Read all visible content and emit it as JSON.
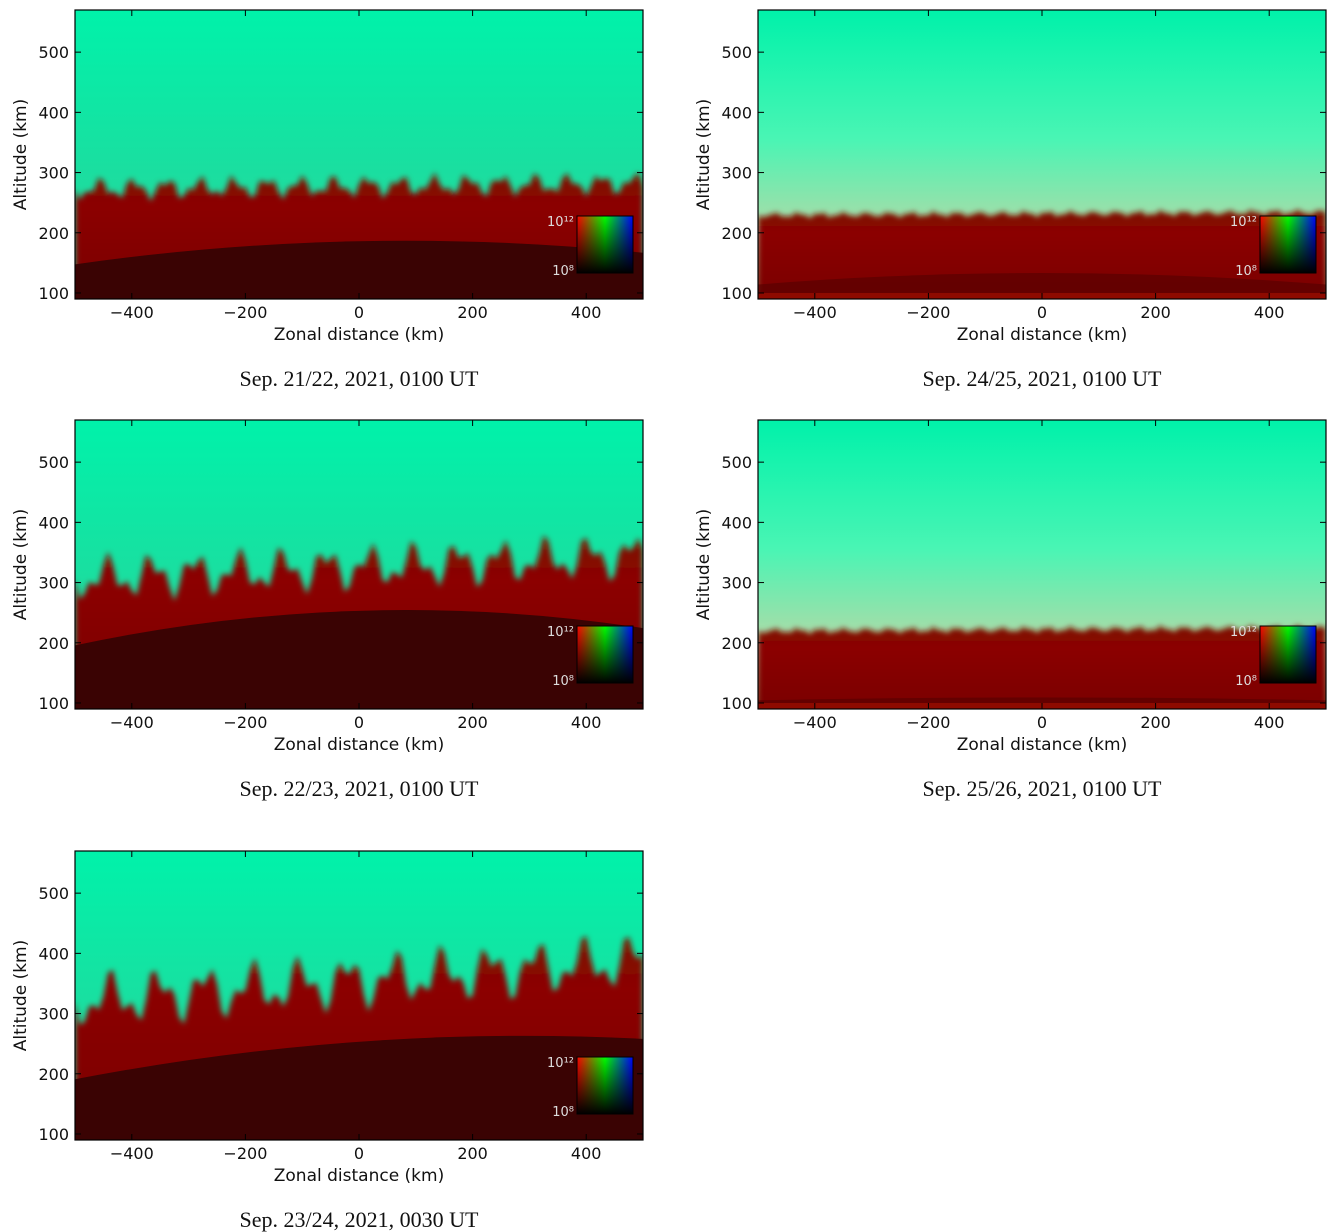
{
  "chart_data": [
    {
      "type": "image",
      "caption": "Sep. 21/22, 2021, 0100 UT",
      "xlabel": "Zonal distance (km)",
      "ylabel": "Altitude (km)",
      "xlim": [
        -500,
        500
      ],
      "ylim": [
        90,
        570
      ],
      "xticks": [
        {
          "value": -400,
          "label": "−400"
        },
        {
          "value": -200,
          "label": "−200"
        },
        0,
        200,
        400
      ],
      "yticks": [
        100,
        200,
        300,
        400,
        500
      ],
      "colorbar_ticks": [
        {
          "value": 1000000000000,
          "label": "10¹²"
        },
        {
          "value": 100000000,
          "label": "10⁸"
        }
      ]
    },
    {
      "type": "image",
      "caption": "Sep. 22/23, 2021, 0100 UT",
      "xlabel": "Zonal distance (km)",
      "ylabel": "Altitude (km)",
      "xlim": [
        -500,
        500
      ],
      "ylim": [
        90,
        570
      ],
      "xticks": [
        {
          "value": -400,
          "label": "−400"
        },
        {
          "value": -200,
          "label": "−200"
        },
        0,
        200,
        400
      ],
      "yticks": [
        100,
        200,
        300,
        400,
        500
      ],
      "colorbar_ticks": [
        {
          "value": 1000000000000,
          "label": "10¹²"
        },
        {
          "value": 100000000,
          "label": "10⁸"
        }
      ]
    },
    {
      "type": "image",
      "caption": "Sep. 23/24, 2021, 0030 UT",
      "xlabel": "Zonal distance (km)",
      "ylabel": "Altitude (km)",
      "xlim": [
        -500,
        500
      ],
      "ylim": [
        90,
        570
      ],
      "xticks": [
        {
          "value": -400,
          "label": "−400"
        },
        {
          "value": -200,
          "label": "−200"
        },
        0,
        200,
        400
      ],
      "yticks": [
        100,
        200,
        300,
        400,
        500
      ],
      "colorbar_ticks": [
        {
          "value": 1000000000000,
          "label": "10¹²"
        },
        {
          "value": 100000000,
          "label": "10⁸"
        }
      ]
    },
    {
      "type": "image",
      "caption": "Sep. 24/25, 2021, 0100 UT",
      "xlabel": "Zonal distance (km)",
      "ylabel": "Altitude (km)",
      "xlim": [
        -500,
        500
      ],
      "ylim": [
        90,
        570
      ],
      "xticks": [
        {
          "value": -400,
          "label": "−400"
        },
        {
          "value": -200,
          "label": "−200"
        },
        0,
        200,
        400
      ],
      "yticks": [
        100,
        200,
        300,
        400,
        500
      ],
      "colorbar_ticks": [
        {
          "value": 1000000000000,
          "label": "10¹²"
        },
        {
          "value": 100000000,
          "label": "10⁸"
        }
      ]
    },
    {
      "type": "image",
      "caption": "Sep. 25/26, 2021, 0100 UT",
      "xlabel": "Zonal distance (km)",
      "ylabel": "Altitude (km)",
      "xlim": [
        -500,
        500
      ],
      "ylim": [
        90,
        570
      ],
      "xticks": [
        {
          "value": -400,
          "label": "−400"
        },
        {
          "value": -200,
          "label": "−200"
        },
        0,
        200,
        400
      ],
      "yticks": [
        100,
        200,
        300,
        400,
        500
      ],
      "colorbar_ticks": [
        {
          "value": 1000000000000,
          "label": "10¹²"
        },
        {
          "value": 100000000,
          "label": "10⁸"
        }
      ]
    }
  ]
}
